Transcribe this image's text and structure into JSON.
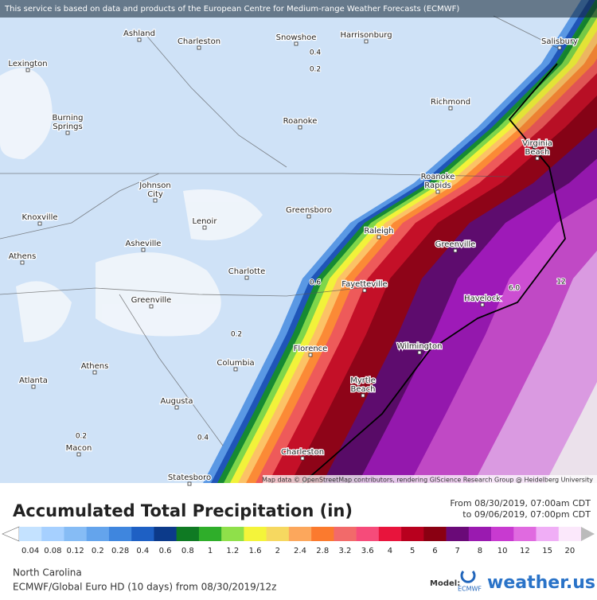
{
  "banner": "This service is based on data and products of the European Centre for Medium-range Weather Forecasts (ECMWF)",
  "cities": [
    {
      "lines": [
        "Ashland"
      ]
    },
    {
      "lines": [
        "Charleston"
      ]
    },
    {
      "lines": [
        "Snowshoe"
      ]
    },
    {
      "lines": [
        "Harrisonburg"
      ]
    },
    {
      "lines": [
        "Salisbury"
      ]
    },
    {
      "lines": [
        "Lexington"
      ]
    },
    {
      "lines": [
        "Richmond"
      ]
    },
    {
      "lines": [
        "Burning",
        "Springs"
      ]
    },
    {
      "lines": [
        "Roanoke"
      ]
    },
    {
      "lines": [
        "Virginia",
        "Beach"
      ]
    },
    {
      "lines": [
        "Roanoke",
        "Rapids"
      ]
    },
    {
      "lines": [
        "Johnson",
        "City"
      ]
    },
    {
      "lines": [
        "Knoxville"
      ]
    },
    {
      "lines": [
        "Lenoir"
      ]
    },
    {
      "lines": [
        "Greensboro"
      ]
    },
    {
      "lines": [
        "Raleigh"
      ]
    },
    {
      "lines": [
        "Greenville"
      ]
    },
    {
      "lines": [
        "Asheville"
      ]
    },
    {
      "lines": [
        "Athens"
      ]
    },
    {
      "lines": [
        "Charlotte"
      ]
    },
    {
      "lines": [
        "Fayetteville"
      ]
    },
    {
      "lines": [
        "Havelock"
      ]
    },
    {
      "lines": [
        "Greenville"
      ]
    },
    {
      "lines": [
        "Florence"
      ]
    },
    {
      "lines": [
        "Columbia"
      ]
    },
    {
      "lines": [
        "Wilmington"
      ]
    },
    {
      "lines": [
        "Athens"
      ]
    },
    {
      "lines": [
        "Myrtle",
        "Beach"
      ]
    },
    {
      "lines": [
        "Atlanta"
      ]
    },
    {
      "lines": [
        "Augusta"
      ]
    },
    {
      "lines": [
        "Macon"
      ]
    },
    {
      "lines": [
        "Charleston"
      ]
    },
    {
      "lines": [
        "Statesboro"
      ]
    }
  ],
  "contour_labels": [
    "0.4",
    "0.2",
    "0.6",
    "0.2",
    "0.2",
    "0.4",
    "6.0",
    "12"
  ],
  "attribution": "Map data © OpenStreetMap contributors, rendering GIScience Research Group @ Heidelberg University",
  "legend": {
    "title": "Accumulated Total Precipitation (in)",
    "date_from": "From 08/30/2019, 07:00am CDT",
    "date_to": "to 09/06/2019, 07:00pm CDT",
    "labels": [
      "0.04",
      "0.08",
      "0.12",
      "0.2",
      "0.28",
      "0.4",
      "0.6",
      "0.8",
      "1",
      "1.2",
      "1.6",
      "2",
      "2.4",
      "2.8",
      "3.2",
      "3.6",
      "4",
      "5",
      "6",
      "7",
      "8",
      "10",
      "12",
      "15",
      "20"
    ],
    "colors": [
      "#c4e2ff",
      "#a6d0ff",
      "#86bcf5",
      "#64a4ec",
      "#3f86de",
      "#1e60c4",
      "#0c3a8a",
      "#0f7a23",
      "#2fae2a",
      "#8fe04a",
      "#f4f43a",
      "#f6d860",
      "#fca75c",
      "#fb7a2e",
      "#f26a6a",
      "#f64b7a",
      "#e8143c",
      "#b8001e",
      "#8a0012",
      "#6a0a78",
      "#9a1ab0",
      "#c83ad0",
      "#e06ae0",
      "#f0aef6",
      "#fbe8fb"
    ]
  },
  "footer": {
    "region": "North Carolina",
    "model_line": "ECMWF/Global Euro HD (10 days) from 08/30/2019/12z",
    "model_label": "Model:",
    "ecmwf": "ECMWF",
    "brand": "weather.us"
  }
}
